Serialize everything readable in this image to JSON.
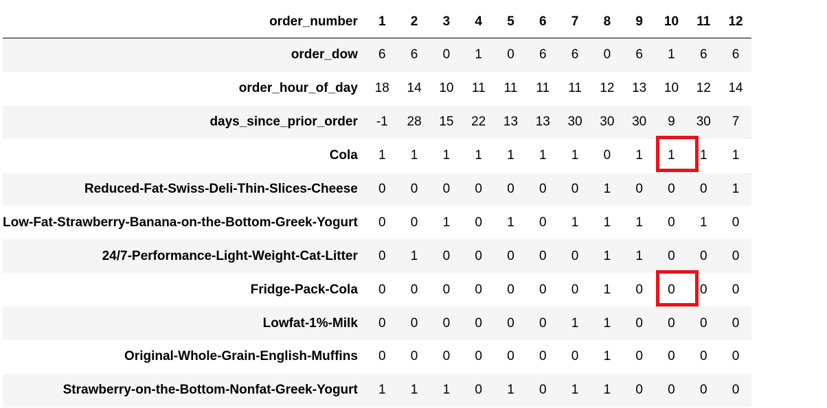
{
  "table": {
    "index_name": "order_number",
    "columns": [
      "1",
      "2",
      "3",
      "4",
      "5",
      "6",
      "7",
      "8",
      "9",
      "10",
      "11",
      "12"
    ],
    "rows": [
      {
        "label": "order_dow",
        "values": [
          "6",
          "6",
          "0",
          "1",
          "0",
          "6",
          "6",
          "0",
          "6",
          "1",
          "6",
          "6"
        ]
      },
      {
        "label": "order_hour_of_day",
        "values": [
          "18",
          "14",
          "10",
          "11",
          "11",
          "11",
          "11",
          "12",
          "13",
          "10",
          "12",
          "14"
        ]
      },
      {
        "label": "days_since_prior_order",
        "values": [
          "-1",
          "28",
          "15",
          "22",
          "13",
          "13",
          "30",
          "30",
          "30",
          "9",
          "30",
          "7"
        ]
      },
      {
        "label": "Cola",
        "values": [
          "1",
          "1",
          "1",
          "1",
          "1",
          "1",
          "1",
          "0",
          "1",
          "1",
          "1",
          "1"
        ]
      },
      {
        "label": "Reduced-Fat-Swiss-Deli-Thin-Slices-Cheese",
        "values": [
          "0",
          "0",
          "0",
          "0",
          "0",
          "0",
          "0",
          "1",
          "0",
          "0",
          "0",
          "1"
        ]
      },
      {
        "label": "Low-Fat-Strawberry-Banana-on-the-Bottom-Greek-Yogurt",
        "values": [
          "0",
          "0",
          "1",
          "0",
          "1",
          "0",
          "1",
          "1",
          "1",
          "0",
          "1",
          "0"
        ]
      },
      {
        "label": "24/7-Performance-Light-Weight-Cat-Litter",
        "values": [
          "0",
          "1",
          "0",
          "0",
          "0",
          "0",
          "0",
          "1",
          "1",
          "0",
          "0",
          "0"
        ]
      },
      {
        "label": "Fridge-Pack-Cola",
        "values": [
          "0",
          "0",
          "0",
          "0",
          "0",
          "0",
          "0",
          "1",
          "0",
          "0",
          "0",
          "0"
        ]
      },
      {
        "label": "Lowfat-1%-Milk",
        "values": [
          "0",
          "0",
          "0",
          "0",
          "0",
          "0",
          "1",
          "1",
          "0",
          "0",
          "0",
          "0"
        ]
      },
      {
        "label": "Original-Whole-Grain-English-Muffins",
        "values": [
          "0",
          "0",
          "0",
          "0",
          "0",
          "0",
          "0",
          "1",
          "0",
          "0",
          "0",
          "0"
        ]
      },
      {
        "label": "Strawberry-on-the-Bottom-Nonfat-Greek-Yogurt",
        "values": [
          "1",
          "1",
          "1",
          "0",
          "1",
          "0",
          "1",
          "1",
          "0",
          "0",
          "0",
          "0"
        ]
      }
    ]
  },
  "highlight_color": "#e8141a"
}
